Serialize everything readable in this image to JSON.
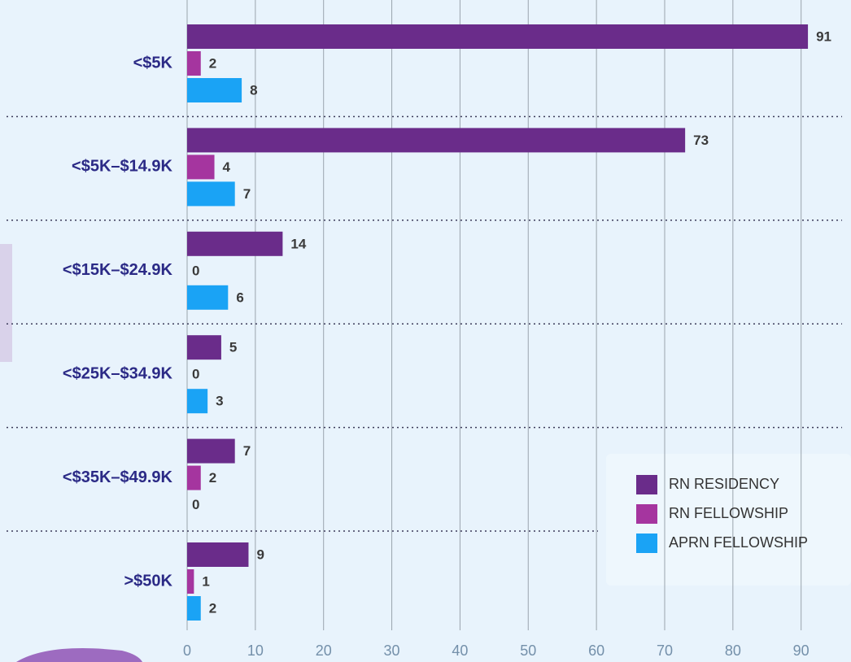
{
  "chart_data": {
    "type": "grouped-horizontal-bar",
    "categories": [
      "<$5K",
      "<$5K–$14.9K",
      "<$15K–$24.9K",
      "<$25K–$34.9K",
      "<$35K–$49.9K",
      ">$50K"
    ],
    "series": [
      {
        "name": "RN RESIDENCY",
        "color": "#6a2c8a",
        "values": [
          91,
          73,
          14,
          5,
          7,
          9
        ]
      },
      {
        "name": "RN FELLOWSHIP",
        "color": "#a5359f",
        "values": [
          2,
          4,
          0,
          0,
          2,
          1
        ]
      },
      {
        "name": "APRN FELLOWSHIP",
        "color": "#1aa3f5",
        "values": [
          8,
          7,
          6,
          3,
          0,
          2
        ]
      }
    ],
    "xlim": [
      0,
      96
    ],
    "xticks": [
      0,
      10,
      20,
      30,
      40,
      50,
      60,
      70,
      80,
      90
    ],
    "grid": true,
    "legend": "lower right"
  }
}
